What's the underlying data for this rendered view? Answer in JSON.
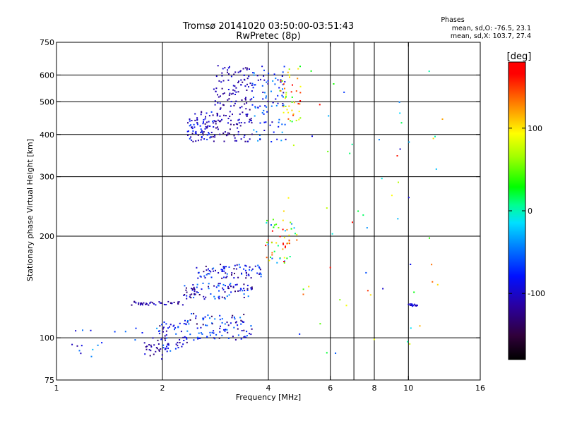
{
  "chart_data": {
    "type": "scatter",
    "title": "Tromsø 20141020 03:50:00-03:51:43",
    "subtitle": "RwPretec (8p)",
    "xlabel": "Frequency [MHz]",
    "ylabel": "Stationary phase Virtual Height [km]",
    "x_scale": "log2",
    "y_scale": "log",
    "xlim": [
      1,
      16
    ],
    "ylim": [
      75,
      750
    ],
    "x_ticks": [
      1,
      2,
      4,
      6,
      8,
      10,
      16
    ],
    "x_gridlines": [
      2,
      4,
      6,
      7,
      8,
      10
    ],
    "y_ticks": [
      75,
      100,
      200,
      300,
      400,
      500,
      600,
      750
    ],
    "y_gridlines": [
      100,
      200,
      300,
      400,
      500,
      600
    ],
    "grid": true,
    "stats": {
      "header": "Phases",
      "line_o": "mean, sd,O: -76.5, 23.1",
      "line_x": "mean, sd,X: 103.7, 27.4"
    },
    "colorbar": {
      "label": "[deg]",
      "range": [
        -180,
        180
      ],
      "ticks": [
        "100",
        "0",
        "-100"
      ],
      "tick_values": [
        100,
        0,
        -100
      ]
    },
    "clusters": [
      {
        "x": [
          2.35,
          2.8
        ],
        "y": [
          380,
          470
        ],
        "phase": [
          -130,
          -60
        ],
        "n": 80
      },
      {
        "x": [
          2.8,
          3.6
        ],
        "y": [
          380,
          640
        ],
        "phase": [
          -130,
          -90
        ],
        "n": 170
      },
      {
        "x": [
          3.6,
          4.5
        ],
        "y": [
          380,
          640
        ],
        "phase": [
          -120,
          -30
        ],
        "n": 90
      },
      {
        "x": [
          4.3,
          5.0
        ],
        "y": [
          420,
          650
        ],
        "phase": [
          20,
          170
        ],
        "n": 45
      },
      {
        "x": [
          1.95,
          2.35
        ],
        "y": [
          92,
          112
        ],
        "phase": [
          -140,
          -50
        ],
        "n": 50
      },
      {
        "x": [
          2.3,
          3.6
        ],
        "y": [
          98,
          118
        ],
        "phase": [
          -140,
          -40
        ],
        "n": 100
      },
      {
        "x": [
          1.6,
          2.3
        ],
        "y": [
          125,
          128
        ],
        "phase": [
          -130,
          -90
        ],
        "n": 40
      },
      {
        "x": [
          2.3,
          3.6
        ],
        "y": [
          130,
          145
        ],
        "phase": [
          -140,
          -40
        ],
        "n": 90
      },
      {
        "x": [
          2.5,
          3.9
        ],
        "y": [
          150,
          165
        ],
        "phase": [
          -140,
          -40
        ],
        "n": 80
      },
      {
        "x": [
          1.1,
          2.2
        ],
        "y": [
          88,
          110
        ],
        "phase": [
          -120,
          -20
        ],
        "n": 30
      },
      {
        "x": [
          1.75,
          2.0
        ],
        "y": [
          85,
          100
        ],
        "phase": [
          -140,
          -100
        ],
        "n": 20
      },
      {
        "x": [
          3.9,
          4.9
        ],
        "y": [
          165,
          225
        ],
        "phase": [
          -60,
          170
        ],
        "n": 50
      },
      {
        "x": [
          4.4,
          4.6
        ],
        "y": [
          185,
          195
        ],
        "phase": [
          140,
          175
        ],
        "n": 8
      },
      {
        "x": [
          10.0,
          10.6
        ],
        "y": [
          124,
          126
        ],
        "phase": [
          -110,
          -80
        ],
        "n": 14
      },
      {
        "x": [
          4.4,
          12.5
        ],
        "y": [
          90,
          620
        ],
        "phase": [
          -100,
          170
        ],
        "n": 60
      }
    ]
  }
}
